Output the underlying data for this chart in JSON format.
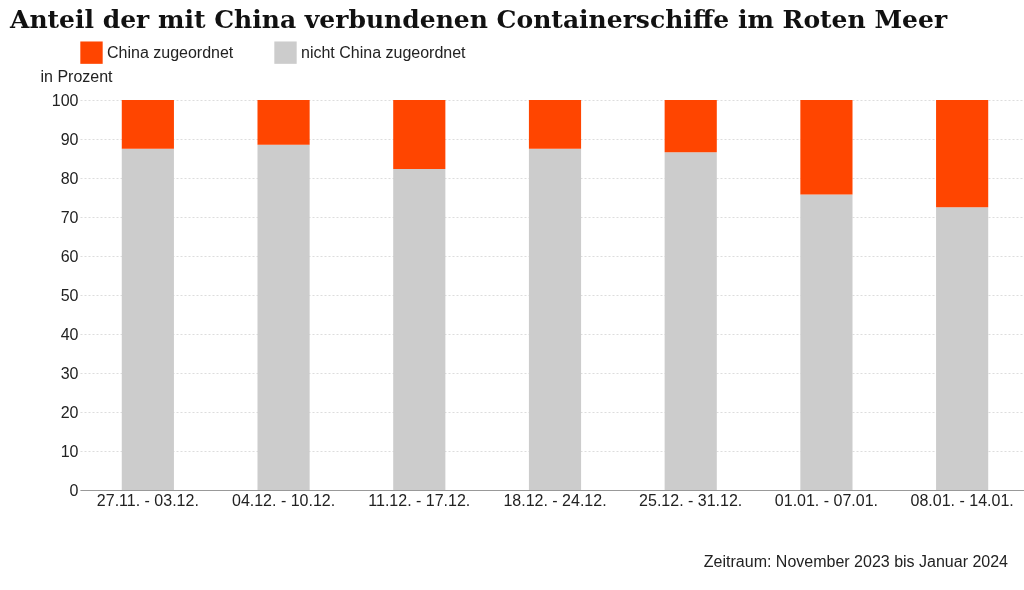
{
  "chart_data": {
    "type": "bar",
    "title": "Anteil der mit China verbundenen Containerschiffe im Roten Meer",
    "ylabel": "in Prozent",
    "categories": [
      "27.11. - 03.12.",
      "04.12. - 10.12.",
      "11.12. - 17.12.",
      "18.12. - 24.12.",
      "25.12. - 31.12.",
      "01.01. - 07.01.",
      "08.01. - 14.01."
    ],
    "series": [
      {
        "name": "nicht China zugeordnet",
        "color": "#cccccc",
        "values": [
          87.5,
          88.5,
          82.3,
          87.5,
          86.6,
          75.8,
          72.5
        ]
      },
      {
        "name": "China zugeordnet",
        "color": "#ff4500",
        "values": [
          12.5,
          11.5,
          17.7,
          12.5,
          13.4,
          24.2,
          27.5
        ]
      }
    ],
    "stacked": true,
    "ylim": [
      0,
      100
    ],
    "yticks": [
      0,
      10,
      20,
      30,
      40,
      50,
      60,
      70,
      80,
      90,
      100
    ],
    "grid": "y",
    "legend": "top left",
    "annotations": [
      "Zeitraum: November 2023 bis Januar 2024"
    ]
  }
}
